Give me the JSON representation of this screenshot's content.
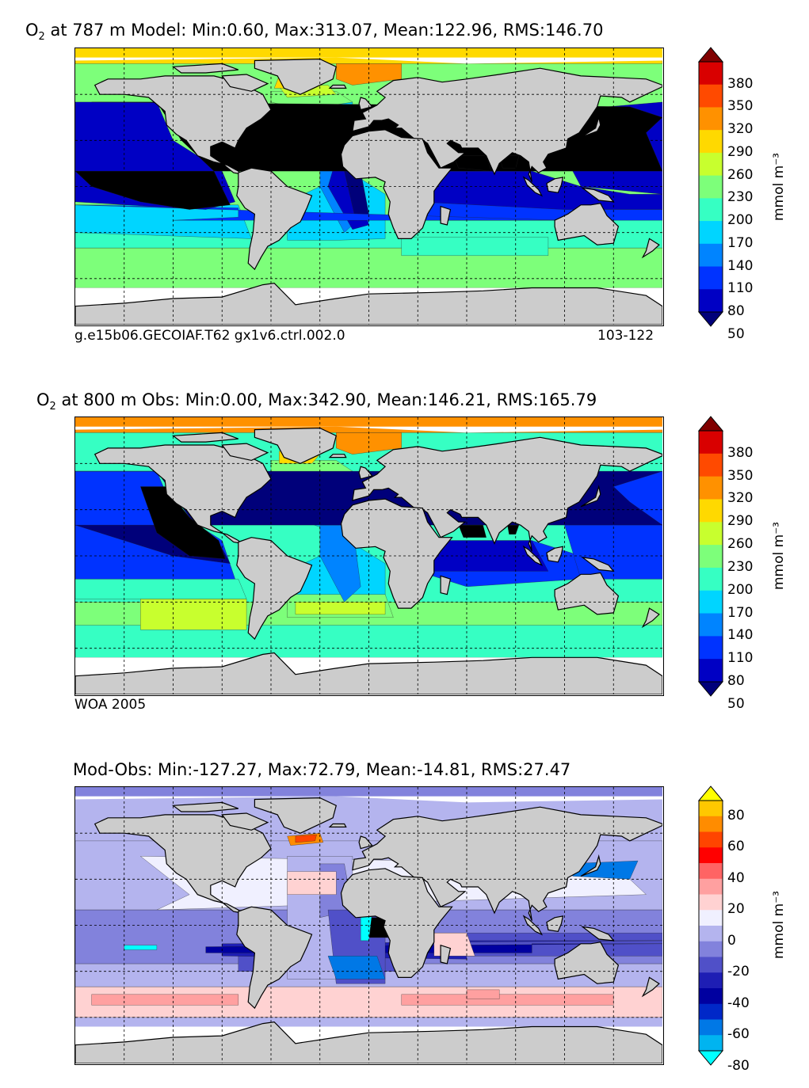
{
  "panels": [
    {
      "title_prefix": "O",
      "title_sub": "2",
      "title_rest": " at 787 m Model: Min:0.60, Max:313.07, Mean:122.96, RMS:146.70",
      "footer_left": "g.e15b06.GECOIAF.T62 gx1v6.ctrl.002.0",
      "footer_right": "103-122",
      "colorbar_unit": "mmol m⁻³",
      "colorbar_ticks": [
        "380",
        "350",
        "320",
        "290",
        "260",
        "230",
        "200",
        "170",
        "140",
        "110",
        "80",
        "50"
      ],
      "colorbar_colors": [
        "#800000",
        "#d90000",
        "#ff4a00",
        "#ff9100",
        "#ffd900",
        "#c8ff2e",
        "#7dff7a",
        "#36ffc3",
        "#00d5ff",
        "#0084ff",
        "#0033ff",
        "#0000c4",
        "#00007a"
      ]
    },
    {
      "title_prefix": "O",
      "title_sub": "2",
      "title_rest": " at 800 m Obs: Min:0.00, Max:342.90, Mean:146.21, RMS:165.79",
      "footer_left": "WOA 2005",
      "footer_right": "",
      "colorbar_unit": "mmol m⁻³",
      "colorbar_ticks": [
        "380",
        "350",
        "320",
        "290",
        "260",
        "230",
        "200",
        "170",
        "140",
        "110",
        "80",
        "50"
      ],
      "colorbar_colors": [
        "#800000",
        "#d90000",
        "#ff4a00",
        "#ff9100",
        "#ffd900",
        "#c8ff2e",
        "#7dff7a",
        "#36ffc3",
        "#00d5ff",
        "#0084ff",
        "#0033ff",
        "#0000c4",
        "#00007a"
      ]
    },
    {
      "title_prefix": "",
      "title_sub": "",
      "title_rest": "Mod-Obs: Min:-127.27, Max:72.79, Mean:-14.81, RMS:27.47",
      "footer_left": "",
      "footer_right": "",
      "colorbar_unit": "mmol m⁻³",
      "colorbar_ticks": [
        "80",
        "60",
        "40",
        "20",
        "0",
        "-20",
        "-40",
        "-60",
        "-80"
      ],
      "colorbar_colors": [
        "#ffff00",
        "#ffc800",
        "#ff8c00",
        "#ff4500",
        "#ff0000",
        "#ff6464",
        "#ffa0a0",
        "#ffd2d2",
        "#f0f0ff",
        "#b4b4ee",
        "#8282dc",
        "#5050c8",
        "#1e1eb4",
        "#0000a0",
        "#0028c8",
        "#0078e6",
        "#00b4f0",
        "#00ffff"
      ]
    }
  ]
}
